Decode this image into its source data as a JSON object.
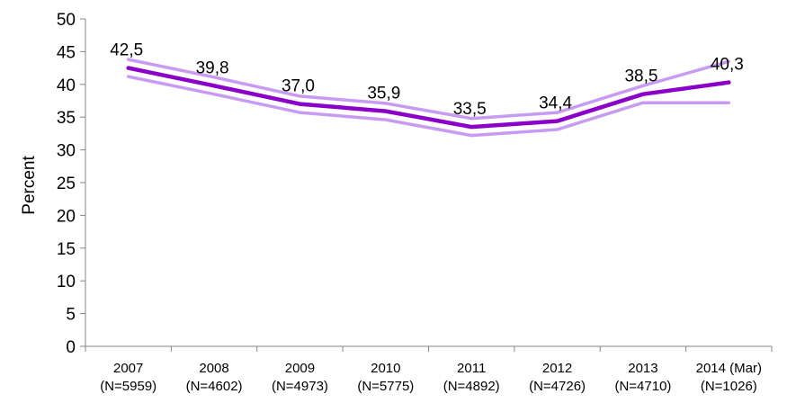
{
  "chart_data": {
    "type": "line",
    "categories": [
      [
        "2007",
        "(N=5959)"
      ],
      [
        "2008",
        "(N=4602)"
      ],
      [
        "2009",
        "(N=4973)"
      ],
      [
        "2010",
        "(N=5775)"
      ],
      [
        "2011",
        "(N=4892)"
      ],
      [
        "2012",
        "(N=4726)"
      ],
      [
        "2013",
        "(N=4710)"
      ],
      [
        "2014 (Mar)",
        "(N=1026)"
      ]
    ],
    "series": [
      {
        "role": "estimate",
        "values": [
          42.5,
          39.8,
          37.0,
          35.9,
          33.5,
          34.4,
          38.5,
          40.3
        ],
        "data_labels": [
          "42,5",
          "39,8",
          "37,0",
          "35,9",
          "33,5",
          "34,4",
          "38,5",
          "40,3"
        ],
        "color": "#8B00C9"
      },
      {
        "role": "upper-bound",
        "values": [
          43.8,
          41.1,
          38.2,
          37.1,
          34.8,
          35.7,
          39.8,
          43.5
        ],
        "color": "#C89BF2"
      },
      {
        "role": "lower-bound",
        "values": [
          41.2,
          38.5,
          35.7,
          34.6,
          32.2,
          33.1,
          37.2,
          37.2
        ],
        "color": "#C89BF2"
      }
    ],
    "yticks": [
      "0",
      "5",
      "10",
      "15",
      "20",
      "25",
      "30",
      "35",
      "40",
      "45",
      "50"
    ],
    "ylabel": "Percent",
    "xlabel": "",
    "title": "",
    "ylim": [
      0,
      50
    ],
    "grid": false,
    "legend": "none"
  }
}
